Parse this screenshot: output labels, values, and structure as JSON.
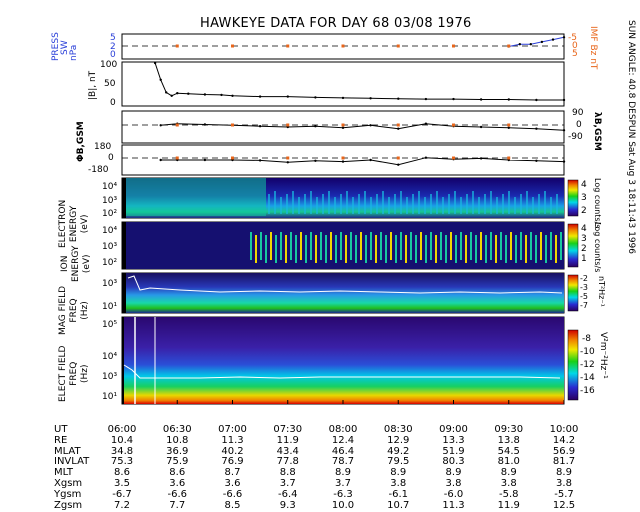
{
  "title": "HAWKEYE DATA FOR DAY  68 03/08 1976",
  "side_text": "SUN ANGLE: 40.8 DESPUN Sat Aug  3 18:11:43 1996",
  "colors": {
    "blue_label": "#2a3fd8",
    "orange_label": "#e8651a",
    "trace": "#000000",
    "bg_black": "#000000"
  },
  "panels": {
    "press": {
      "label_lines": [
        "PRESS",
        "SW",
        "nPa"
      ],
      "ticks": [
        "0",
        "2",
        "5"
      ],
      "right_label_lines": [
        "IMF Bz nT"
      ],
      "right_ticks": [
        "-5",
        "0",
        "5"
      ]
    },
    "b_mag": {
      "label": "|B|, nT",
      "ticks": [
        "0",
        "50",
        "100"
      ]
    },
    "lambda": {
      "label": "λB,GSM",
      "ticks": [
        "90",
        "0",
        "-90"
      ]
    },
    "phi": {
      "label": "ΦB,GSM",
      "ticks": [
        "180",
        "0",
        "-180"
      ]
    },
    "electron": {
      "label_lines": [
        "ELECTRON",
        "ENERGY",
        "(eV)"
      ],
      "ticks": [
        "10⁴",
        "10³",
        "10²"
      ],
      "colorbar_ticks": [
        "4",
        "3",
        "2"
      ],
      "colorbar_label": "Log counts/s"
    },
    "ion": {
      "label_lines": [
        "ION",
        "ENERGY",
        "(eV)"
      ],
      "ticks": [
        "10⁴",
        "10³",
        "10²"
      ],
      "colorbar_ticks": [
        "4",
        "3",
        "2",
        "1"
      ],
      "colorbar_label": "Log counts/s"
    },
    "magfield": {
      "label_lines": [
        "MAG FIELD",
        "FREQ",
        "(Hz)"
      ],
      "ticks": [
        "10³",
        "10¹"
      ],
      "colorbar_ticks": [
        "-2",
        "-3",
        "-5",
        "-7"
      ],
      "colorbar_label": "nT²Hz⁻¹"
    },
    "elecfield": {
      "label_lines": [
        "ELECT FIELD",
        "FREQ",
        "(Hz)"
      ],
      "ticks": [
        "10⁵",
        "10⁴",
        "10³",
        "10¹"
      ],
      "colorbar_ticks": [
        "-8",
        "-10",
        "-12",
        "-14",
        "-16"
      ],
      "colorbar_label": "V²m⁻²Hz⁻¹"
    }
  },
  "ephemeris": {
    "rows": [
      {
        "label": "UT",
        "values": [
          "06:00",
          "06:30",
          "07:00",
          "07:30",
          "08:00",
          "08:30",
          "09:00",
          "09:30",
          "10:00"
        ]
      },
      {
        "label": "RE",
        "values": [
          "10.4",
          "10.8",
          "11.3",
          "11.9",
          "12.4",
          "12.9",
          "13.3",
          "13.8",
          "14.2"
        ]
      },
      {
        "label": "MLAT",
        "values": [
          "34.8",
          "36.9",
          "40.2",
          "43.4",
          "46.4",
          "49.2",
          "51.9",
          "54.5",
          "56.9"
        ]
      },
      {
        "label": "INVLAT",
        "values": [
          "75.3",
          "75.9",
          "76.9",
          "77.8",
          "78.7",
          "79.5",
          "80.3",
          "81.0",
          "81.7"
        ]
      },
      {
        "label": "MLT",
        "values": [
          "8.6",
          "8.6",
          "8.7",
          "8.8",
          "8.9",
          "8.9",
          "8.9",
          "8.9",
          "8.9"
        ]
      },
      {
        "label": "Xgsm",
        "values": [
          "3.5",
          "3.6",
          "3.6",
          "3.7",
          "3.7",
          "3.8",
          "3.8",
          "3.8",
          "3.8"
        ]
      },
      {
        "label": "Ygsm",
        "values": [
          "-6.7",
          "-6.6",
          "-6.6",
          "-6.4",
          "-6.3",
          "-6.1",
          "-6.0",
          "-5.8",
          "-5.7"
        ]
      },
      {
        "label": "Zgsm",
        "values": [
          "7.2",
          "7.7",
          "8.5",
          "9.3",
          "10.0",
          "10.7",
          "11.3",
          "11.9",
          "12.5"
        ]
      }
    ]
  },
  "chart_data": {
    "type": "line",
    "title": "HAWKEYE DATA FOR DAY  68 03/08 1976",
    "x_labels": [
      "06:00",
      "06:30",
      "07:00",
      "07:30",
      "08:00",
      "08:30",
      "09:00",
      "09:30",
      "10:00"
    ],
    "x_hours": [
      6.0,
      6.5,
      7.0,
      7.5,
      8.0,
      8.5,
      9.0,
      9.5,
      10.0
    ],
    "series": [
      {
        "name": "|B|, nT",
        "ylim": [
          0,
          100
        ],
        "x": [
          6.3,
          6.35,
          6.4,
          6.45,
          6.5,
          6.6,
          6.75,
          6.9,
          7.0,
          7.25,
          7.5,
          7.75,
          8.0,
          8.25,
          8.5,
          8.75,
          9.0,
          9.25,
          9.5,
          9.75,
          10.0
        ],
        "y": [
          100,
          60,
          30,
          22,
          28,
          27,
          25,
          24,
          22,
          20,
          20,
          18,
          17,
          16,
          15,
          14,
          14,
          13,
          13,
          12,
          12
        ]
      },
      {
        "name": "λB,GSM",
        "ylim": [
          -90,
          90
        ],
        "x": [
          6.35,
          6.5,
          6.75,
          7.0,
          7.25,
          7.5,
          7.75,
          8.0,
          8.25,
          8.5,
          8.75,
          9.0,
          9.25,
          9.5,
          9.75,
          10.0
        ],
        "y": [
          10,
          20,
          15,
          10,
          5,
          0,
          5,
          -5,
          10,
          -10,
          20,
          5,
          0,
          -5,
          -10,
          -20
        ]
      },
      {
        "name": "ΦB,GSM",
        "ylim": [
          -180,
          180
        ],
        "x": [
          6.35,
          6.5,
          6.75,
          7.0,
          7.25,
          7.5,
          7.75,
          8.0,
          8.25,
          8.5,
          8.75,
          9.0,
          9.25,
          9.5,
          9.75,
          10.0
        ],
        "y": [
          0,
          0,
          0,
          0,
          -5,
          -30,
          -10,
          -20,
          0,
          -60,
          30,
          10,
          20,
          0,
          -10,
          -20
        ]
      },
      {
        "name": "PRESS SW nPa",
        "ylim": [
          0,
          5
        ],
        "x": [
          9.5,
          9.6,
          9.7,
          9.8,
          9.9,
          10.0
        ],
        "y": [
          2.5,
          3,
          3,
          3.5,
          4,
          4.5
        ]
      }
    ],
    "spectrograms": [
      {
        "name": "ELECTRON ENERGY (eV)",
        "colorbar": [
          2,
          4
        ]
      },
      {
        "name": "ION ENERGY (eV)",
        "colorbar": [
          1,
          4
        ]
      },
      {
        "name": "MAG FIELD FREQ (Hz)",
        "colorbar": [
          -7,
          -2
        ]
      },
      {
        "name": "ELECT FIELD FREQ (Hz)",
        "colorbar": [
          -16,
          -8
        ]
      }
    ]
  }
}
